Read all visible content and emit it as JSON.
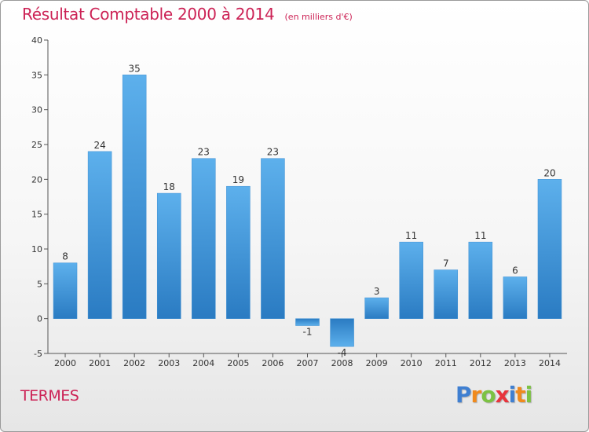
{
  "chart_data": {
    "type": "bar",
    "title": "Résultat Comptable 2000 à 2014",
    "subtitle": "(en milliers d'€)",
    "categories": [
      "2000",
      "2001",
      "2002",
      "2003",
      "2004",
      "2005",
      "2006",
      "2007",
      "2008",
      "2009",
      "2010",
      "2011",
      "2012",
      "2013",
      "2014"
    ],
    "values": [
      8,
      24,
      35,
      18,
      23,
      19,
      23,
      -1,
      -4,
      3,
      11,
      7,
      11,
      6,
      20
    ],
    "ylim": [
      -5,
      40
    ],
    "yticks": [
      -5,
      0,
      5,
      10,
      15,
      20,
      25,
      30,
      35,
      40
    ],
    "xlabel": "",
    "ylabel": "",
    "grid": false,
    "bar_color": "#4a9fe0"
  },
  "commune": "TERMES",
  "brand": {
    "letters": [
      "P",
      "r",
      "o",
      "x",
      "i",
      "t",
      "i"
    ],
    "colors": [
      "#3f7fd1",
      "#f08a1d",
      "#7cc243",
      "#e8343c",
      "#3f7fd1",
      "#f08a1d",
      "#7cc243"
    ]
  },
  "accent_color": "#cc2255"
}
